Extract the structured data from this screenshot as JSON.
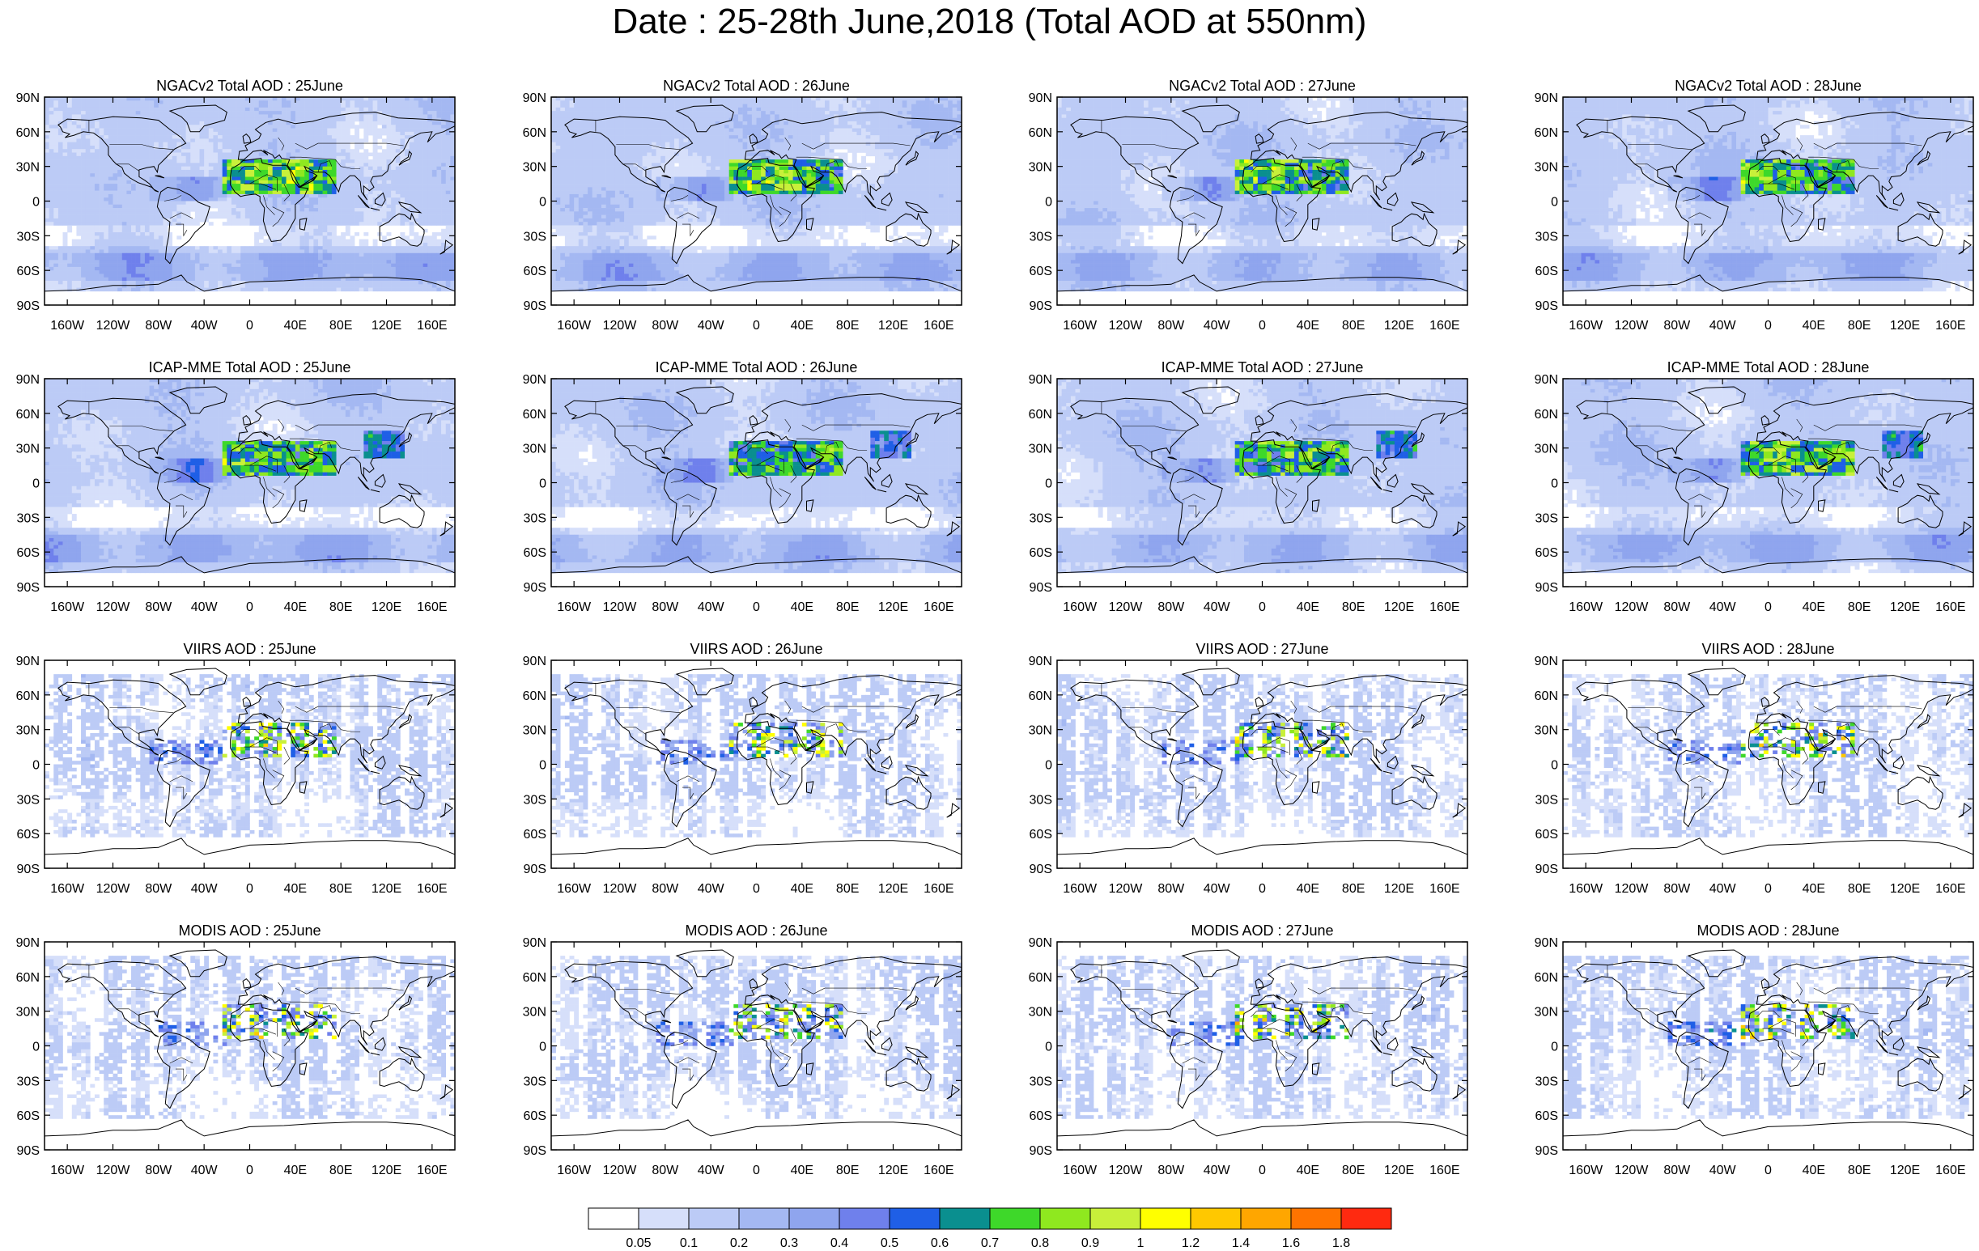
{
  "title": "Date : 25-28th June,2018 (Total AOD at 550nm)",
  "x_tick_labels": [
    "160W",
    "120W",
    "80W",
    "40W",
    "0",
    "40E",
    "80E",
    "120E",
    "160E"
  ],
  "y_tick_labels": [
    "90N",
    "60N",
    "30N",
    "0",
    "30S",
    "60S",
    "90S"
  ],
  "panel_titles": [
    [
      "NGACv2 Total AOD : 25June",
      "NGACv2 Total AOD : 26June",
      "NGACv2 Total AOD : 27June",
      "NGACv2 Total AOD : 28June"
    ],
    [
      "ICAP-MME Total AOD : 25June",
      "ICAP-MME Total AOD : 26June",
      "ICAP-MME Total AOD : 27June",
      "ICAP-MME Total AOD : 28June"
    ],
    [
      "VIIRS AOD : 25June",
      "VIIRS AOD : 26June",
      "VIIRS AOD : 27June",
      "VIIRS AOD : 28June"
    ],
    [
      "MODIS AOD : 25June",
      "MODIS AOD : 26June",
      "MODIS AOD : 27June",
      "MODIS AOD : 28June"
    ]
  ],
  "colorbar": {
    "labels": [
      "0.05",
      "0.1",
      "0.2",
      "0.3",
      "0.4",
      "0.5",
      "0.6",
      "0.7",
      "0.8",
      "0.9",
      "1",
      "1.2",
      "1.4",
      "1.6",
      "1.8"
    ],
    "colors": [
      "#ffffff",
      "#d6dffa",
      "#bccbf6",
      "#a4b8f2",
      "#8fa5ee",
      "#6f80ec",
      "#1f5fe6",
      "#0a8f8f",
      "#3ed82a",
      "#8fe81f",
      "#c8f03a",
      "#ffff00",
      "#ffc800",
      "#ffa600",
      "#ff7400",
      "#ff2a10"
    ]
  }
}
